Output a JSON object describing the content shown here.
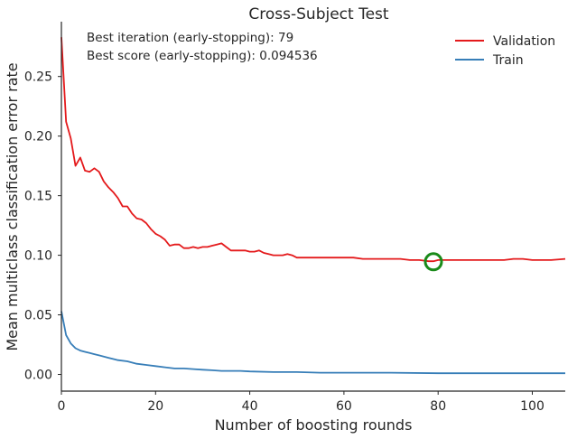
{
  "chart_data": {
    "type": "line",
    "title": "Cross-Subject Test",
    "xlabel": "Number of boosting rounds",
    "ylabel": "Mean multiclass classification error rate",
    "xlim": [
      0,
      107
    ],
    "ylim": [
      -0.014,
      0.296
    ],
    "xticks": [
      0,
      20,
      40,
      60,
      80,
      100
    ],
    "xtick_labels": [
      "0",
      "20",
      "40",
      "60",
      "80",
      "100"
    ],
    "yticks": [
      0.0,
      0.05,
      0.1,
      0.15,
      0.2,
      0.25
    ],
    "ytick_labels": [
      "0.00",
      "0.05",
      "0.10",
      "0.15",
      "0.20",
      "0.25"
    ],
    "grid": false,
    "legend_position": "top-right",
    "annotations": [
      "Best iteration (early-stopping): 79",
      "Best score (early-stopping): 0.094536"
    ],
    "best_marker": {
      "x": 79,
      "y": 0.094536,
      "color": "#1a8a1a"
    },
    "series": [
      {
        "name": "Validation",
        "color": "#e41a1c",
        "x": [
          0,
          1,
          2,
          3,
          4,
          5,
          6,
          7,
          8,
          9,
          10,
          11,
          12,
          13,
          14,
          15,
          16,
          17,
          18,
          19,
          20,
          21,
          22,
          23,
          24,
          25,
          26,
          27,
          28,
          29,
          30,
          31,
          32,
          33,
          34,
          35,
          36,
          37,
          38,
          39,
          40,
          41,
          42,
          43,
          44,
          45,
          46,
          47,
          48,
          49,
          50,
          52,
          54,
          56,
          58,
          60,
          62,
          64,
          66,
          68,
          70,
          72,
          74,
          76,
          78,
          79,
          80,
          82,
          84,
          86,
          88,
          90,
          92,
          94,
          96,
          98,
          100,
          102,
          104,
          107
        ],
        "values": [
          0.283,
          0.212,
          0.198,
          0.175,
          0.182,
          0.171,
          0.17,
          0.173,
          0.17,
          0.162,
          0.157,
          0.153,
          0.148,
          0.141,
          0.141,
          0.135,
          0.131,
          0.13,
          0.127,
          0.122,
          0.118,
          0.116,
          0.113,
          0.108,
          0.109,
          0.109,
          0.106,
          0.106,
          0.107,
          0.106,
          0.107,
          0.107,
          0.108,
          0.109,
          0.11,
          0.107,
          0.104,
          0.104,
          0.104,
          0.104,
          0.103,
          0.103,
          0.104,
          0.102,
          0.101,
          0.1,
          0.1,
          0.1,
          0.101,
          0.1,
          0.098,
          0.098,
          0.098,
          0.098,
          0.098,
          0.098,
          0.098,
          0.097,
          0.097,
          0.097,
          0.097,
          0.097,
          0.096,
          0.096,
          0.095,
          0.095,
          0.096,
          0.096,
          0.096,
          0.096,
          0.096,
          0.096,
          0.096,
          0.096,
          0.097,
          0.097,
          0.096,
          0.096,
          0.096,
          0.097
        ]
      },
      {
        "name": "Train",
        "color": "#377eb8",
        "x": [
          0,
          1,
          2,
          3,
          4,
          5,
          6,
          7,
          8,
          9,
          10,
          12,
          14,
          16,
          18,
          20,
          22,
          24,
          26,
          28,
          30,
          32,
          34,
          36,
          38,
          40,
          45,
          50,
          55,
          60,
          70,
          80,
          90,
          100,
          107
        ],
        "values": [
          0.053,
          0.033,
          0.026,
          0.022,
          0.02,
          0.019,
          0.018,
          0.017,
          0.016,
          0.015,
          0.014,
          0.012,
          0.011,
          0.009,
          0.008,
          0.007,
          0.006,
          0.005,
          0.005,
          0.0045,
          0.004,
          0.0035,
          0.003,
          0.003,
          0.003,
          0.0025,
          0.002,
          0.002,
          0.0015,
          0.0015,
          0.0015,
          0.001,
          0.001,
          0.001,
          0.001
        ]
      }
    ]
  }
}
